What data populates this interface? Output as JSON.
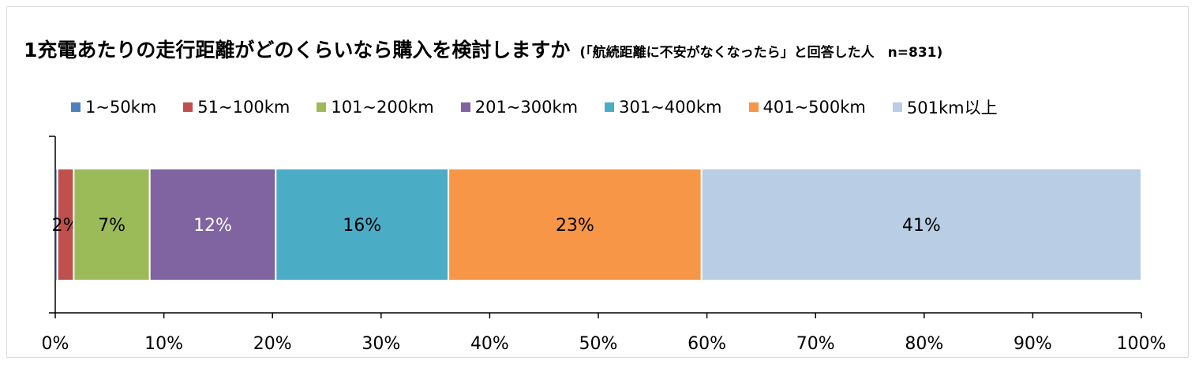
{
  "title": {
    "main": "1充電あたりの走行距離がどのくらいなら購入を検討しますか",
    "sub": "(「航続距離に不安がなくなったら」と回答した人　n=831)"
  },
  "chart_data": {
    "type": "bar",
    "orientation": "horizontal",
    "stacked": true,
    "categories": [
      ""
    ],
    "series": [
      {
        "name": "1~50km",
        "values": [
          0.2
        ],
        "label": "",
        "color": "#4f81bd",
        "label_color": "#000000"
      },
      {
        "name": "51~100km",
        "values": [
          1.5
        ],
        "label": "2%",
        "color": "#c0504d",
        "label_color": "#000000"
      },
      {
        "name": "101~200km",
        "values": [
          7.0
        ],
        "label": "7%",
        "color": "#9bbb59",
        "label_color": "#000000"
      },
      {
        "name": "201~300km",
        "values": [
          11.6
        ],
        "label": "12%",
        "color": "#8064a2",
        "label_color": "#ffffff"
      },
      {
        "name": "301~400km",
        "values": [
          15.9
        ],
        "label": "16%",
        "color": "#4bacc6",
        "label_color": "#000000"
      },
      {
        "name": "401~500km",
        "values": [
          23.3
        ],
        "label": "23%",
        "color": "#f79646",
        "label_color": "#000000"
      },
      {
        "name": "501km以上",
        "values": [
          40.5
        ],
        "label": "41%",
        "color": "#b9cde5",
        "label_color": "#000000"
      }
    ],
    "xlim": [
      0,
      100
    ],
    "x_ticks": [
      "0%",
      "10%",
      "20%",
      "30%",
      "40%",
      "50%",
      "60%",
      "70%",
      "80%",
      "90%",
      "100%"
    ],
    "legend_position": "top",
    "grid": false
  }
}
